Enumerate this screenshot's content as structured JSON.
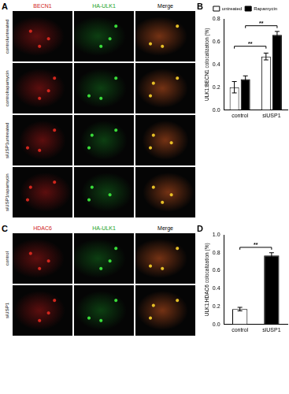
{
  "figure": {
    "A": {
      "label": "A",
      "columns": [
        "BECN1",
        "HA-ULK1",
        "Merge"
      ],
      "rows": [
        [
          "control",
          "untreated"
        ],
        [
          "control",
          "rapamycin"
        ],
        [
          "siUSP1",
          "untreated"
        ],
        [
          "siUSP1",
          "rapamycin"
        ]
      ]
    },
    "C": {
      "label": "C",
      "columns": [
        "HDAC6",
        "HA-ULK1",
        "Merge"
      ],
      "rows": [
        [
          "control"
        ],
        [
          "siUSP1"
        ]
      ]
    }
  },
  "chart_data": [
    {
      "panel": "B",
      "type": "bar",
      "y_label": "ULK1:BECN1 colocalization (%)",
      "categories": [
        "control",
        "siUSP1"
      ],
      "series": [
        {
          "name": "untreated",
          "color": "#ffffff",
          "values": [
            0.2,
            0.47
          ],
          "errors": [
            0.05,
            0.03
          ]
        },
        {
          "name": "Rapamycin",
          "color": "#000000",
          "values": [
            0.27,
            0.66
          ],
          "errors": [
            0.03,
            0.03
          ]
        }
      ],
      "ylim": [
        0,
        0.8
      ],
      "yticks": [
        {
          "value": 0,
          "label": "0.0"
        },
        0.2,
        0.4,
        0.6,
        0.8
      ],
      "grid": false,
      "legend": "top",
      "significance": [
        {
          "from": {
            "series": "untreated",
            "category": "control"
          },
          "to": {
            "series": "untreated",
            "category": "siUSP1"
          },
          "y": 0.56,
          "label": "**"
        },
        {
          "from": {
            "series": "Rapamycin",
            "category": "control"
          },
          "to": {
            "series": "Rapamycin",
            "category": "siUSP1"
          },
          "y": 0.74,
          "label": "**"
        }
      ]
    },
    {
      "panel": "D",
      "type": "bar",
      "y_label": "ULK1:HDAC6 colocalization (%)",
      "categories": [
        "control",
        "siUSP1"
      ],
      "values": [
        0.17,
        0.77
      ],
      "errors": [
        0.02,
        0.03
      ],
      "colors": [
        "#ffffff",
        "#000000"
      ],
      "ylim": [
        0,
        1
      ],
      "yticks": [
        {
          "value": 0,
          "label": "0.0"
        },
        0.2,
        0.4,
        0.6,
        0.8,
        {
          "value": 1,
          "label": "1.0"
        }
      ],
      "grid": false,
      "significance": [
        {
          "from": {
            "category": "control"
          },
          "to": {
            "category": "siUSP1"
          },
          "y": 0.86,
          "label": "**"
        }
      ]
    }
  ]
}
